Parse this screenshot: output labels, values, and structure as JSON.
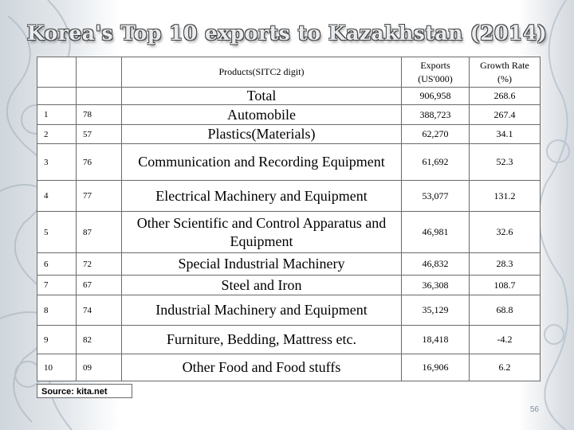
{
  "slide": {
    "title": "Korea's Top 10 exports to Kazakhstan (2014)",
    "source": "Source: kita.net",
    "page_number": "56"
  },
  "table": {
    "headers": {
      "product": "Products(SITC2 digit)",
      "exports": "Exports\n(US'000)",
      "growth": "Growth Rate\n(%)"
    },
    "rows": [
      {
        "rank": "",
        "code": "",
        "product": "Total",
        "exports": "906,958",
        "growth": "268.6"
      },
      {
        "rank": "1",
        "code": "78",
        "product": "Automobile",
        "exports": "388,723",
        "growth": "267.4"
      },
      {
        "rank": "2",
        "code": "57",
        "product": "Plastics(Materials)",
        "exports": "62,270",
        "growth": "34.1"
      },
      {
        "rank": "3",
        "code": "76",
        "product": "Communication and Recording Equipment",
        "exports": "61,692",
        "growth": "52.3"
      },
      {
        "rank": "4",
        "code": "77",
        "product": "Electrical Machinery and Equipment",
        "exports": "53,077",
        "growth": "131.2"
      },
      {
        "rank": "5",
        "code": "87",
        "product": "Other Scientific and Control Apparatus and Equipment",
        "exports": "46,981",
        "growth": "32.6"
      },
      {
        "rank": "6",
        "code": "72",
        "product": "Special Industrial Machinery",
        "exports": "46,832",
        "growth": "28.3"
      },
      {
        "rank": "7",
        "code": "67",
        "product": "Steel and Iron",
        "exports": "36,308",
        "growth": "108.7"
      },
      {
        "rank": "8",
        "code": "74",
        "product": "Industrial Machinery and Equipment",
        "exports": "35,129",
        "growth": "68.8"
      },
      {
        "rank": "9",
        "code": "82",
        "product": "Furniture, Bedding, Mattress etc.",
        "exports": "18,418",
        "growth": "-4.2"
      },
      {
        "rank": "10",
        "code": "09",
        "product": "Other Food and Food stuffs",
        "exports": "16,906",
        "growth": "6.2"
      }
    ]
  }
}
